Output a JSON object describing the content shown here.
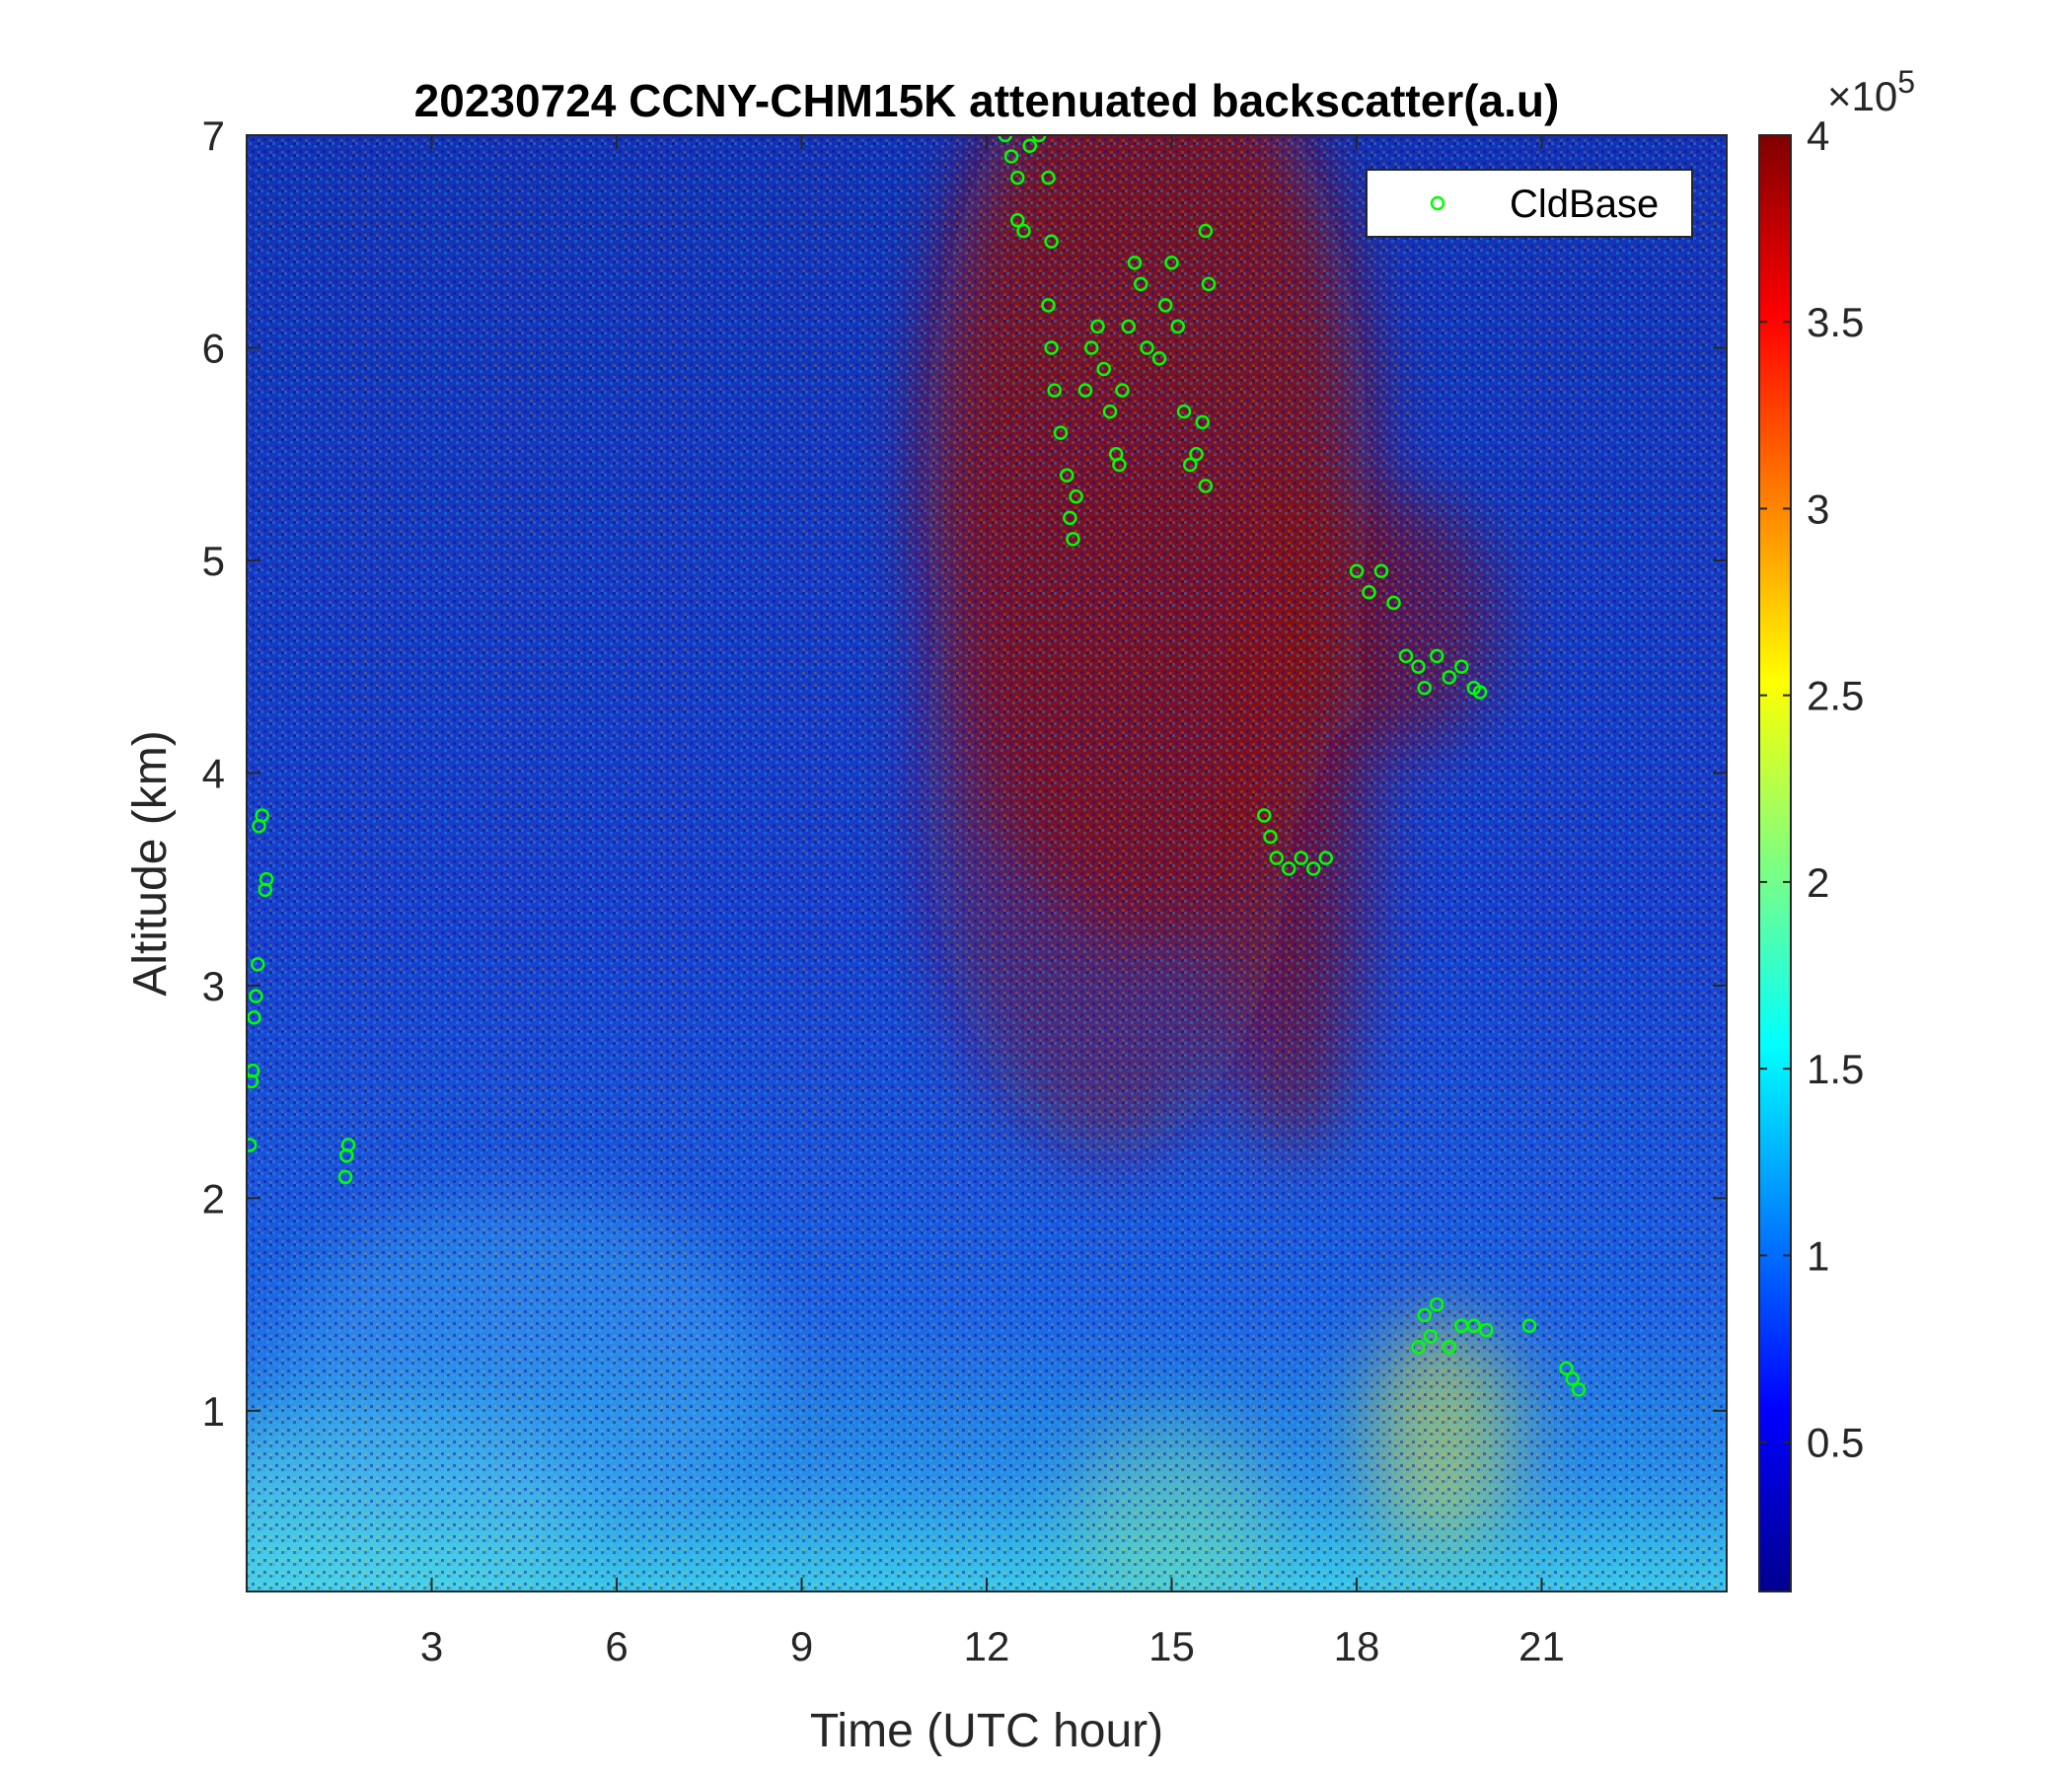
{
  "chart_data": {
    "type": "heatmap",
    "title": "20230724 CCNY-CHM15K attenuated backscatter(a.u)",
    "xlabel": "Time (UTC hour)",
    "ylabel": "Altitude (km)",
    "xlim": [
      0,
      24
    ],
    "ylim": [
      0.15,
      7
    ],
    "xticks": [
      3,
      6,
      9,
      12,
      15,
      18,
      21
    ],
    "yticks": [
      1,
      2,
      3,
      4,
      5,
      6,
      7
    ],
    "colormap": "jet",
    "colorbar": {
      "range": [
        0.1,
        4
      ],
      "ticks": [
        "0.5",
        "1",
        "1.5",
        "2",
        "2.5",
        "3",
        "3.5",
        "4"
      ],
      "tick_values": [
        0.5,
        1,
        1.5,
        2,
        2.5,
        3,
        3.5,
        4
      ],
      "exponent_label": "×10",
      "exponent_power": "5"
    },
    "legend": {
      "entries": [
        "CldBase"
      ],
      "position": "top-right"
    },
    "series": [
      {
        "name": "CldBase",
        "marker": "circle-open",
        "color": "#00ff00",
        "points": [
          [
            0.05,
            2.25
          ],
          [
            0.08,
            2.55
          ],
          [
            0.1,
            2.6
          ],
          [
            0.12,
            2.85
          ],
          [
            0.15,
            2.95
          ],
          [
            0.18,
            3.1
          ],
          [
            0.2,
            3.75
          ],
          [
            0.25,
            3.8
          ],
          [
            0.3,
            3.45
          ],
          [
            0.32,
            3.5
          ],
          [
            1.6,
            2.1
          ],
          [
            1.62,
            2.2
          ],
          [
            1.65,
            2.25
          ],
          [
            12.3,
            7.0
          ],
          [
            12.4,
            6.9
          ],
          [
            12.5,
            6.8
          ],
          [
            12.5,
            6.6
          ],
          [
            12.6,
            6.55
          ],
          [
            12.7,
            6.95
          ],
          [
            12.85,
            7.0
          ],
          [
            13.0,
            6.8
          ],
          [
            13.05,
            6.5
          ],
          [
            13.0,
            6.2
          ],
          [
            13.05,
            6.0
          ],
          [
            13.1,
            5.8
          ],
          [
            13.2,
            5.6
          ],
          [
            13.3,
            5.4
          ],
          [
            13.35,
            5.2
          ],
          [
            13.4,
            5.1
          ],
          [
            13.45,
            5.3
          ],
          [
            13.6,
            5.8
          ],
          [
            13.7,
            6.0
          ],
          [
            13.8,
            6.1
          ],
          [
            13.9,
            5.9
          ],
          [
            14.0,
            5.7
          ],
          [
            14.1,
            5.5
          ],
          [
            14.15,
            5.45
          ],
          [
            14.2,
            5.8
          ],
          [
            14.3,
            6.1
          ],
          [
            14.4,
            6.4
          ],
          [
            14.5,
            6.3
          ],
          [
            14.6,
            6.0
          ],
          [
            14.8,
            5.95
          ],
          [
            14.9,
            6.2
          ],
          [
            15.0,
            6.4
          ],
          [
            15.1,
            6.1
          ],
          [
            15.2,
            5.7
          ],
          [
            15.3,
            5.45
          ],
          [
            15.4,
            5.5
          ],
          [
            15.5,
            5.65
          ],
          [
            15.55,
            5.35
          ],
          [
            15.6,
            6.3
          ],
          [
            15.55,
            6.55
          ],
          [
            16.5,
            3.8
          ],
          [
            16.6,
            3.7
          ],
          [
            16.7,
            3.6
          ],
          [
            16.9,
            3.55
          ],
          [
            17.1,
            3.6
          ],
          [
            17.3,
            3.55
          ],
          [
            17.5,
            3.6
          ],
          [
            18.0,
            4.95
          ],
          [
            18.2,
            4.85
          ],
          [
            18.4,
            4.95
          ],
          [
            18.6,
            4.8
          ],
          [
            18.8,
            4.55
          ],
          [
            19.0,
            4.5
          ],
          [
            19.1,
            4.4
          ],
          [
            19.3,
            4.55
          ],
          [
            19.5,
            4.45
          ],
          [
            19.7,
            4.5
          ],
          [
            19.9,
            4.4
          ],
          [
            20.0,
            4.38
          ],
          [
            19.0,
            1.3
          ],
          [
            19.1,
            1.45
          ],
          [
            19.2,
            1.35
          ],
          [
            19.3,
            1.5
          ],
          [
            19.5,
            1.3
          ],
          [
            19.7,
            1.4
          ],
          [
            19.9,
            1.4
          ],
          [
            20.1,
            1.38
          ],
          [
            20.8,
            1.4
          ],
          [
            21.4,
            1.2
          ],
          [
            21.5,
            1.15
          ],
          [
            21.6,
            1.1
          ]
        ]
      }
    ]
  }
}
